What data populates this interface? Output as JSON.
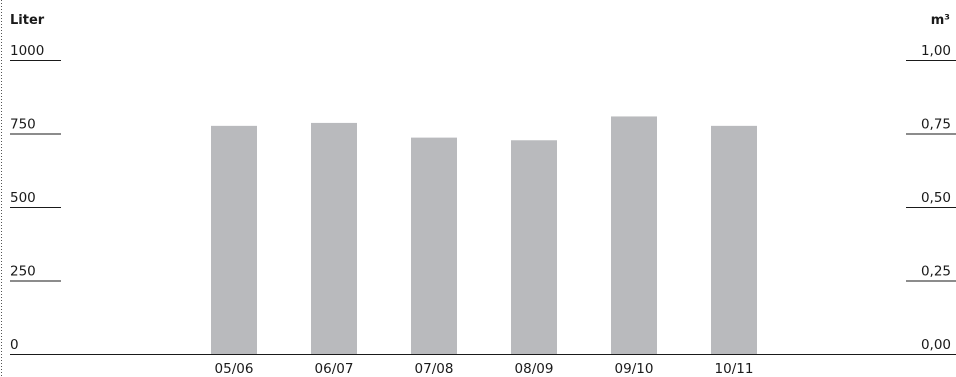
{
  "chart_data": {
    "type": "bar",
    "left_unit": "Liter",
    "right_unit": "m³",
    "categories": [
      "05/06",
      "06/07",
      "07/08",
      "08/09",
      "09/10",
      "10/11"
    ],
    "values": [
      776,
      786,
      736,
      727,
      808,
      776
    ],
    "ylim": [
      0,
      1000
    ],
    "left_ticks": [
      "0",
      "250",
      "500",
      "750",
      "1000"
    ],
    "right_ticks": [
      "0,00",
      "0,25",
      "0,50",
      "0,75",
      "1,00"
    ],
    "bar_color": "#b9babd",
    "grid": false
  }
}
